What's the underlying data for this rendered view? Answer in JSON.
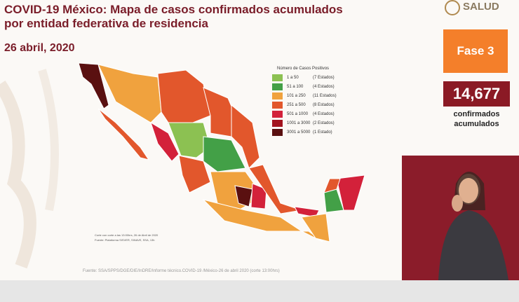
{
  "header": {
    "title_line1": "COVID-19 México: Mapa de casos confirmados acumulados",
    "title_line2": "por entidad federativa de residencia",
    "date": "26 abril, 2020",
    "logo": "SALUD"
  },
  "phase": "Fase 3",
  "total": {
    "value": "14,677",
    "caption_line1": "confirmados",
    "caption_line2": "acumulados"
  },
  "legend": {
    "title": "Número de Casos Positivos",
    "items": [
      {
        "range": "1 a 50",
        "states": "(7 Estados)",
        "color": "#8cc152"
      },
      {
        "range": "51 a 100",
        "states": "(4 Estados)",
        "color": "#43a047"
      },
      {
        "range": "101 a 250",
        "states": "(11 Estados)",
        "color": "#f0a23e"
      },
      {
        "range": "251 a 500",
        "states": "(8 Estados)",
        "color": "#e2572c"
      },
      {
        "range": "501 a 1000",
        "states": "(4 Estados)",
        "color": "#d3213a"
      },
      {
        "range": "1001 a 3000",
        "states": "(2 Estados)",
        "color": "#a3141f"
      },
      {
        "range": "3001 a 5000",
        "states": "(1 Estado)",
        "color": "#5a1010"
      }
    ]
  },
  "notes": [
    "Corte con corte a las 13:00hrs, 26 de Abril de 2020",
    "Fuente: Plataforma SISVER, SINAVE, SSA, 13h"
  ],
  "source": "Fuente: SSA/SPPS/DGE/DIE/InDRE/Informe técnico.COVID-19 /México-26 de abril 2020 (corte 13:00hrs)"
}
